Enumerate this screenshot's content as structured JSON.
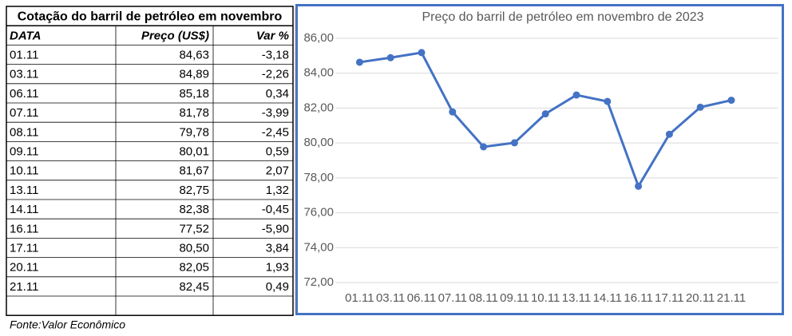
{
  "table": {
    "title": "Cotação do barril de petróleo em novembro",
    "header": [
      "DATA",
      "Preço (US$)",
      "Var %"
    ],
    "rows": [
      [
        "01.11",
        "84,63",
        "-3,18"
      ],
      [
        "03.11",
        "84,89",
        "-2,26"
      ],
      [
        "06.11",
        "85,18",
        "0,34"
      ],
      [
        "07.11",
        "81,78",
        "-3,99"
      ],
      [
        "08.11",
        "79,78",
        "-2,45"
      ],
      [
        "09.11",
        "80,01",
        "0,59"
      ],
      [
        "10.11",
        "81,67",
        "2,07"
      ],
      [
        "13.11",
        "82,75",
        "1,32"
      ],
      [
        "14.11",
        "82,38",
        "-0,45"
      ],
      [
        "16.11",
        "77,52",
        "-5,90"
      ],
      [
        "17.11",
        "80,50",
        "3,84"
      ],
      [
        "20.11",
        "82,05",
        "1,93"
      ],
      [
        "21.11",
        "82,45",
        "0,49"
      ]
    ]
  },
  "chart_data": {
    "type": "line",
    "title": "Preço do barril de petróleo em novembro de 2023",
    "categories": [
      "01.11",
      "03.11",
      "06.11",
      "07.11",
      "08.11",
      "09.11",
      "10.11",
      "13.11",
      "14.11",
      "16.11",
      "17.11",
      "20.11",
      "21.11"
    ],
    "values": [
      84.63,
      84.89,
      85.18,
      81.78,
      79.78,
      80.01,
      81.67,
      82.75,
      82.38,
      77.52,
      80.5,
      82.05,
      82.45
    ],
    "color": "#4472c4",
    "ylim": [
      72,
      86
    ],
    "yticks": [
      {
        "value": 72,
        "label": "72,00"
      },
      {
        "value": 74,
        "label": "74,00"
      },
      {
        "value": 76,
        "label": "76,00"
      },
      {
        "value": 78,
        "label": "78,00"
      },
      {
        "value": 80,
        "label": "80,00"
      },
      {
        "value": 82,
        "label": "82,00"
      },
      {
        "value": 84,
        "label": "84,00"
      },
      {
        "value": 86,
        "label": "86,00"
      }
    ],
    "grid": true
  },
  "source": "Fonte:Valor Econômico"
}
